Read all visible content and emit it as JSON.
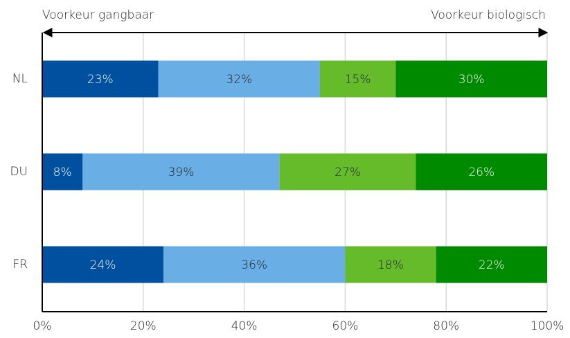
{
  "chart_data": {
    "type": "stacked-bar-horizontal",
    "annotations": [
      "Voorkeur gangbaar",
      "Voorkeur biologisch"
    ],
    "categories": [
      "NL",
      "DU",
      "FR"
    ],
    "series": [
      {
        "color": "#0050a0",
        "values": [
          23,
          8,
          24
        ],
        "value_labels": [
          "23%",
          "8%",
          "24%"
        ]
      },
      {
        "color": "#6aaee6",
        "values": [
          32,
          39,
          36
        ],
        "value_labels": [
          "32%",
          "39%",
          "36%"
        ]
      },
      {
        "color": "#66bb2a",
        "values": [
          15,
          27,
          18
        ],
        "value_labels": [
          "15%",
          "27%",
          "18%"
        ]
      },
      {
        "color": "#008a00",
        "values": [
          30,
          26,
          22
        ],
        "value_labels": [
          "30%",
          "26%",
          "22%"
        ]
      }
    ],
    "xlim": [
      0,
      100
    ],
    "xticks": [
      {
        "value": 0,
        "label": "0%"
      },
      {
        "value": 20,
        "label": "20%"
      },
      {
        "value": 40,
        "label": "40%"
      },
      {
        "value": 60,
        "label": "60%"
      },
      {
        "value": 80,
        "label": "80%"
      },
      {
        "value": 100,
        "label": "100%"
      }
    ],
    "grid": true
  }
}
